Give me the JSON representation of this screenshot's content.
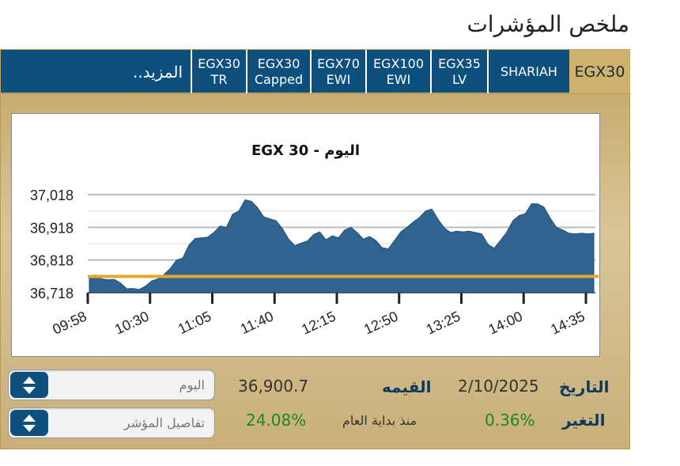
{
  "page": {
    "title": "ملخص المؤشرات"
  },
  "tabs": [
    {
      "id": "more",
      "label": "المزيد.."
    },
    {
      "id": "egx30tr",
      "line1": "EGX30",
      "line2": "TR"
    },
    {
      "id": "egx30capped",
      "line1": "EGX30",
      "line2": "Capped"
    },
    {
      "id": "egx70",
      "line1": "EGX70",
      "line2": "EWI"
    },
    {
      "id": "egx100",
      "line1": "EGX100",
      "line2": "EWI"
    },
    {
      "id": "egx35",
      "line1": "EGX35",
      "line2": "LV"
    },
    {
      "id": "shariah",
      "label": "SHARIAH"
    },
    {
      "id": "egx30",
      "label": "EGX30",
      "active": true
    }
  ],
  "chart_data": {
    "type": "area",
    "title": "EGX 30  - اليوم",
    "x_ticks": [
      "09:58",
      "10:30",
      "11:05",
      "11:40",
      "12:15",
      "12:50",
      "13:25",
      "14:00",
      "14:35"
    ],
    "y_ticks": [
      "37,018",
      "36,918",
      "36,818",
      "36,718"
    ],
    "ylim": [
      36718,
      37018
    ],
    "reference_line": 36768,
    "series": [
      {
        "values": [
          36770,
          36772,
          36760,
          36758,
          36759,
          36748,
          36730,
          36731,
          36728,
          36738,
          36754,
          36760,
          36774,
          36792,
          36818,
          36824,
          36864,
          36884,
          36886,
          36888,
          36902,
          36922,
          36918,
          36958,
          36968,
          37002,
          36998,
          36978,
          36950,
          36944,
          36938,
          36914,
          36882,
          36862,
          36870,
          36876,
          36896,
          36904,
          36880,
          36892,
          36886,
          36910,
          36918,
          36902,
          36882,
          36890,
          36878,
          36856,
          36852,
          36878,
          36904,
          36918,
          36934,
          36948,
          36968,
          36974,
          36942,
          36916,
          36902,
          36906,
          36904,
          36906,
          36902,
          36898,
          36866,
          36854,
          36878,
          36902,
          36938,
          36954,
          36960,
          36990,
          36990,
          36980,
          36946,
          36918,
          36910,
          36900,
          36898,
          36900,
          36898,
          36900
        ]
      }
    ],
    "colors": {
      "fill": "#2f6390",
      "reference": "#e2a92a",
      "grid": "#bbbbbb"
    }
  },
  "controls": {
    "period_value": "اليوم",
    "details_value": "تفاصيل المؤشر"
  },
  "info": {
    "date_label": "التاريخ",
    "date_value": "2/10/2025",
    "value_label": "القيمه",
    "value": "36,900.7",
    "change_label": "التغير",
    "change_value": "0.36%",
    "ytd_label": "منذ بداية العام",
    "ytd_value": "24.08%"
  },
  "icons": {
    "stepper": "up-down-arrows-icon"
  }
}
